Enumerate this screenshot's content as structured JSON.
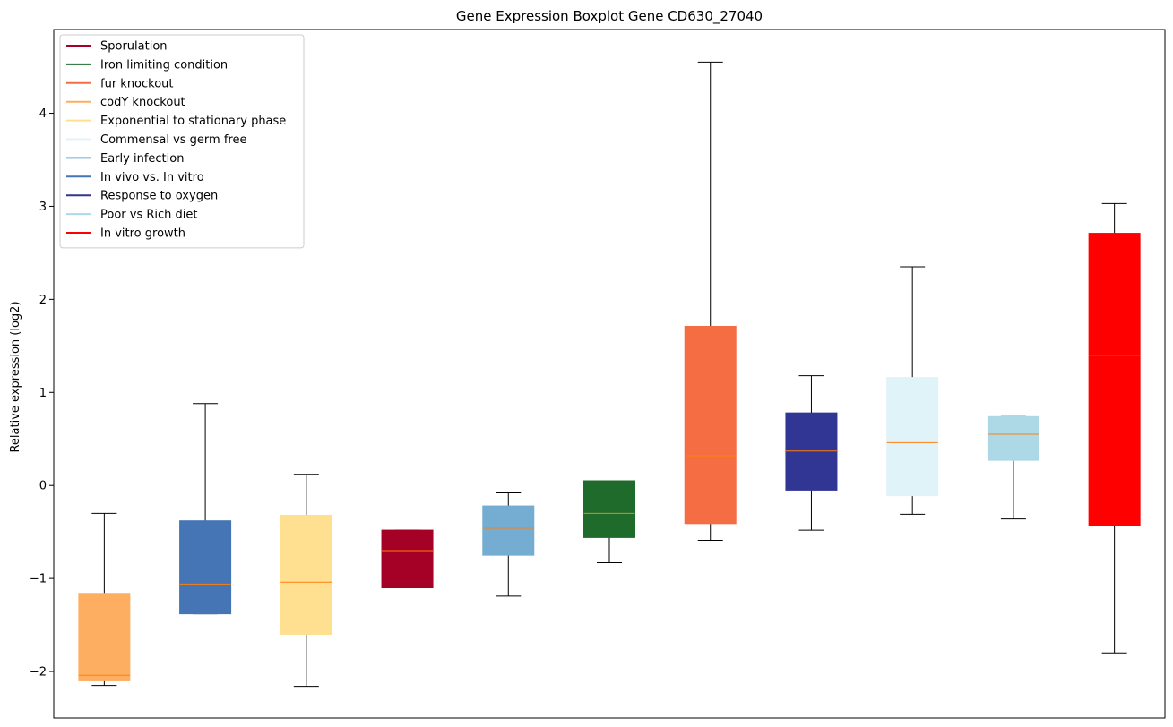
{
  "chart_data": {
    "type": "boxplot",
    "title": "Gene Expression Boxplot Gene CD630_27040",
    "xlabel": "",
    "ylabel": "Relative expression (log2)",
    "ylim": [
      -2.5,
      4.9
    ],
    "yticks": [
      -2,
      -1,
      0,
      1,
      2,
      3,
      4
    ],
    "ytick_labels": [
      "−2",
      "−1",
      "0",
      "1",
      "2",
      "3",
      "4"
    ],
    "legend_position": "top-left",
    "legend": [
      {
        "label": "Sporulation",
        "color": "#a50026"
      },
      {
        "label": "Iron limiting condition",
        "color": "#1f6b2b"
      },
      {
        "label": "fur knockout",
        "color": "#f46d43"
      },
      {
        "label": "codY knockout",
        "color": "#fdae61"
      },
      {
        "label": "Exponential to stationary phase",
        "color": "#fee090"
      },
      {
        "label": "Commensal vs germ free",
        "color": "#e0f3f8"
      },
      {
        "label": "Early infection",
        "color": "#74add1"
      },
      {
        "label": "In vivo vs. In vitro",
        "color": "#4575b4"
      },
      {
        "label": "Response to oxygen",
        "color": "#313695"
      },
      {
        "label": "Poor vs Rich diet",
        "color": "#abd9e9"
      },
      {
        "label": "In vitro growth",
        "color": "#ff0000"
      }
    ],
    "boxes": [
      {
        "color": "#fdae61",
        "whisker_low": -2.15,
        "q1": -2.1,
        "median": -2.04,
        "q3": -1.16,
        "whisker_high": -0.3
      },
      {
        "color": "#4575b4",
        "whisker_low": -1.38,
        "q1": -1.38,
        "median": -1.06,
        "q3": -0.38,
        "whisker_high": 0.88
      },
      {
        "color": "#fee090",
        "whisker_low": -2.16,
        "q1": -1.6,
        "median": -1.04,
        "q3": -0.32,
        "whisker_high": 0.12
      },
      {
        "color": "#a50026",
        "whisker_low": -1.1,
        "q1": -1.1,
        "median": -0.7,
        "q3": -0.48,
        "whisker_high": -0.48
      },
      {
        "color": "#74add1",
        "whisker_low": -1.19,
        "q1": -0.75,
        "median": -0.46,
        "q3": -0.22,
        "whisker_high": -0.08
      },
      {
        "color": "#1f6b2b",
        "whisker_low": -0.83,
        "q1": -0.56,
        "median": -0.3,
        "q3": 0.05,
        "whisker_high": 0.05
      },
      {
        "color": "#f46d43",
        "whisker_low": -0.59,
        "q1": -0.41,
        "median": 0.32,
        "q3": 1.71,
        "whisker_high": 4.55
      },
      {
        "color": "#313695",
        "whisker_low": -0.48,
        "q1": -0.05,
        "median": 0.37,
        "q3": 0.78,
        "whisker_high": 1.18
      },
      {
        "color": "#e0f3f8",
        "whisker_low": -0.31,
        "q1": -0.11,
        "median": 0.46,
        "q3": 1.16,
        "whisker_high": 2.35
      },
      {
        "color": "#add8e6",
        "whisker_low": -0.36,
        "q1": 0.27,
        "median": 0.55,
        "q3": 0.74,
        "whisker_high": 0.74
      },
      {
        "color": "#ff0000",
        "whisker_low": -1.8,
        "q1": -0.43,
        "median": 1.4,
        "q3": 2.71,
        "whisker_high": 3.03
      }
    ],
    "median_color": "#ff7f0e"
  }
}
